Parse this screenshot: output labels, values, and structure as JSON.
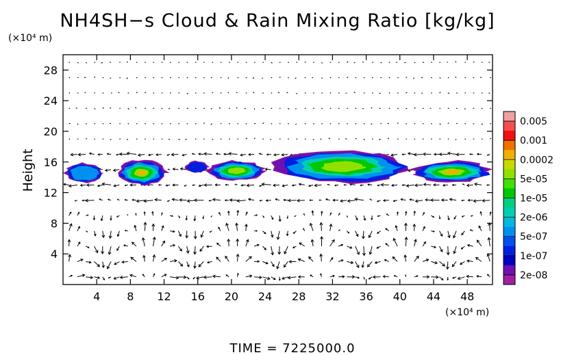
{
  "chart_data": {
    "type": "heatmap",
    "title": "NH4SH−s Cloud & Rain Mixing Ratio [kg/kg]",
    "xlabel": "",
    "ylabel": "Height",
    "x_unit": "(×10⁴ m)",
    "y_unit": "(×10⁴ m)",
    "xlim": [
      0,
      51
    ],
    "ylim": [
      0,
      30
    ],
    "x_ticks": [
      4,
      8,
      12,
      16,
      20,
      24,
      28,
      32,
      36,
      40,
      44,
      48
    ],
    "y_ticks": [
      4,
      8,
      12,
      16,
      20,
      24,
      28
    ],
    "colorbar": {
      "labels": [
        "0.005",
        "0.001",
        "0.0002",
        "5e-05",
        "1e-05",
        "2e-06",
        "5e-07",
        "1e-07",
        "2e-08"
      ],
      "colors": [
        "#f0a0a0",
        "#f05050",
        "#f01010",
        "#f07000",
        "#f0b000",
        "#c8d800",
        "#90e000",
        "#40e000",
        "#00c800",
        "#00d080",
        "#00d0b0",
        "#00b8e0",
        "#0090f0",
        "#0050f0",
        "#0020e0",
        "#0000c0",
        "#7010b0",
        "#a020a0"
      ]
    },
    "cloud_layer": {
      "height_range": [
        13,
        17.5
      ],
      "patches": [
        {
          "x": [
            0.3,
            4.8
          ],
          "y": [
            13.3,
            15.8
          ],
          "peak": "2e-05"
        },
        {
          "x": [
            6.5,
            12.2
          ],
          "y": [
            13,
            16.2
          ],
          "peak": "0.0002"
        },
        {
          "x": [
            14.6,
            17.2
          ],
          "y": [
            14.6,
            16.1
          ],
          "peak": "1e-07"
        },
        {
          "x": [
            17.3,
            23.9
          ],
          "y": [
            13.6,
            16.1
          ],
          "peak": "5e-05"
        },
        {
          "x": [
            25.3,
            41.2
          ],
          "y": [
            13.3,
            17.5
          ],
          "peak": "5e-05"
        },
        {
          "x": [
            41.6,
            50.8
          ],
          "y": [
            13.3,
            16.1
          ],
          "peak": "0.0002"
        }
      ]
    },
    "vector_field": {
      "description_units": "wind vectors over height-distance domain",
      "grid_dx": 1.0,
      "grid_dy": 2.0
    },
    "time_label": "TIME  =  7225000.0"
  }
}
